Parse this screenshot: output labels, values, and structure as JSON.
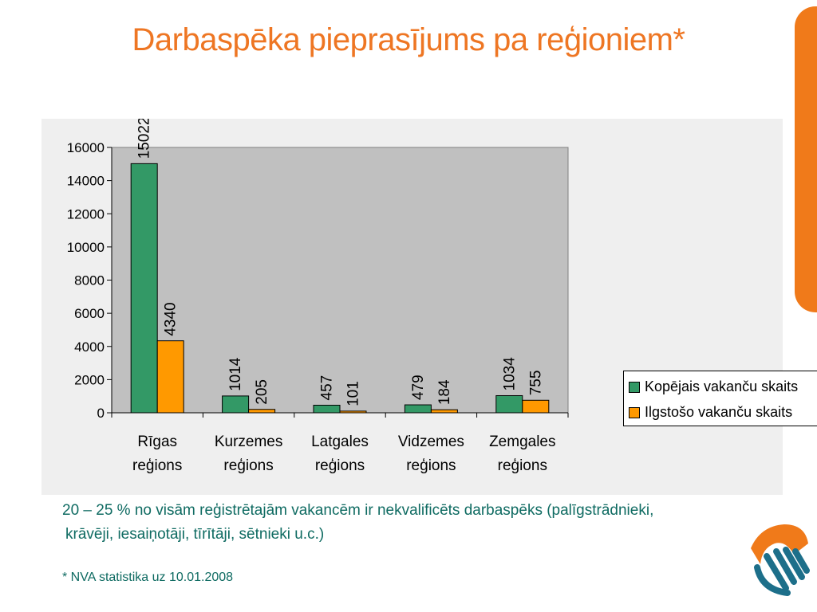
{
  "title": "Darbaspēka pieprasījums pa reģioniem*",
  "note_line1": "20 – 25 % no visām reģistrētajām vakancēm ir nekvalificēts darbaspēks (palīgstrādnieki,",
  "note_line2": "krāvēji, iesaiņotāji, tīrītāji, sētnieki u.c.)",
  "source": "* NVA statistika uz 10.01.2008",
  "colors": {
    "accent": "#ee7623",
    "series1": "#339966",
    "series2": "#ff9900",
    "plot_bg": "#c0c0c0",
    "note_text": "#0f6b62"
  },
  "chart_data": {
    "type": "bar",
    "categories": [
      [
        "Rīgas",
        "reģions"
      ],
      [
        "Kurzemes",
        "reģions"
      ],
      [
        "Latgales",
        "reģions"
      ],
      [
        "Vidzemes",
        "reģions"
      ],
      [
        "Zemgales",
        "reģions"
      ]
    ],
    "series": [
      {
        "name": "Kopējais vakanču skaits",
        "values": [
          15022,
          1014,
          457,
          479,
          1034
        ],
        "color": "#339966"
      },
      {
        "name": "Ilgstošo vakanču skaits",
        "values": [
          4340,
          205,
          101,
          184,
          755
        ],
        "color": "#ff9900"
      }
    ],
    "yticks": [
      0,
      2000,
      4000,
      6000,
      8000,
      10000,
      12000,
      14000,
      16000
    ],
    "ylim": [
      0,
      16000
    ],
    "grid": false,
    "legend": "right"
  }
}
